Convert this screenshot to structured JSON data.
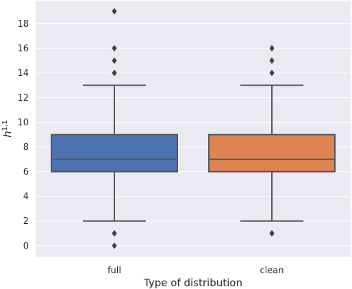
{
  "chart_data": {
    "type": "box",
    "xlabel": "Type of distribution",
    "ylabel": "h",
    "ylabel_superscript": "1,1",
    "ylim": [
      -0.9,
      19.8
    ],
    "yticks": [
      0,
      2,
      4,
      6,
      8,
      10,
      12,
      14,
      16,
      18
    ],
    "grid": true,
    "background": "#eaeaf2",
    "categories": [
      "full",
      "clean"
    ],
    "boxes": [
      {
        "category": "full",
        "color": "#4c72b0",
        "whisker_low": 2,
        "q1": 6,
        "median": 7,
        "q3": 9,
        "whisker_high": 13,
        "outliers": [
          19,
          16,
          15,
          14,
          1,
          0
        ]
      },
      {
        "category": "clean",
        "color": "#dd8452",
        "whisker_low": 2,
        "q1": 6,
        "median": 7,
        "q3": 9,
        "whisker_high": 13,
        "outliers": [
          16,
          15,
          14,
          1
        ]
      }
    ]
  }
}
